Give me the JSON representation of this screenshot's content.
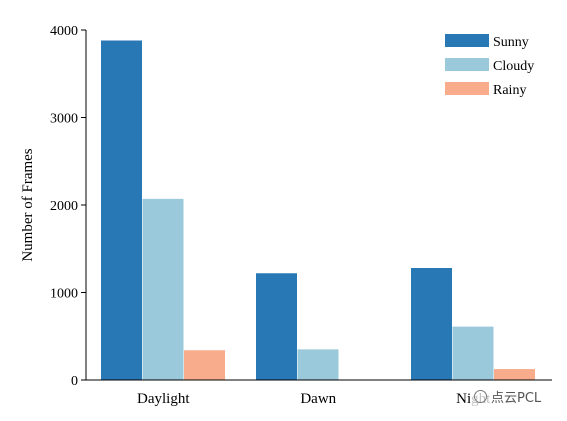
{
  "chart_data": {
    "type": "bar",
    "categories": [
      "Daylight",
      "Dawn",
      "Night"
    ],
    "series": [
      {
        "name": "Sunny",
        "values": [
          3880,
          1220,
          1280
        ],
        "color": "#2878b5"
      },
      {
        "name": "Cloudy",
        "values": [
          2070,
          350,
          610
        ],
        "color": "#9ac9db"
      },
      {
        "name": "Rainy",
        "values": [
          340,
          0,
          125
        ],
        "color": "#f8ac8c"
      }
    ],
    "title": "",
    "xlabel": "",
    "ylabel": "Number of Frames",
    "ylim": [
      0,
      4000
    ],
    "yticks": [
      0,
      1000,
      2000,
      3000,
      4000
    ],
    "grid": false,
    "legend_position": "top-right"
  },
  "watermark": {
    "icon": "wechat-icon",
    "text": "点云PCL"
  }
}
